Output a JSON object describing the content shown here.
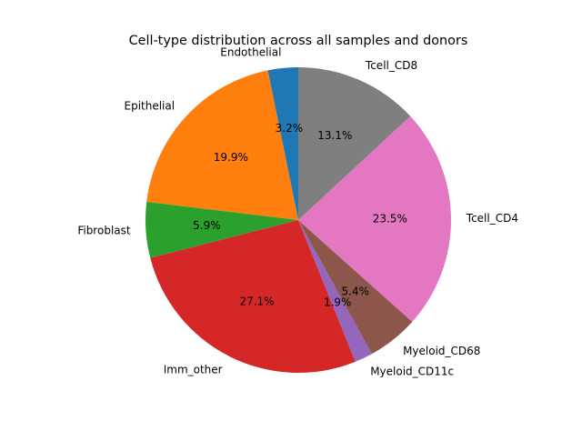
{
  "chart_data": {
    "type": "pie",
    "title": "Cell-type distribution across all samples and donors",
    "slices": [
      {
        "label": "Endothelial",
        "value": 3.2,
        "pct_text": "3.2%",
        "color": "#1f77b4"
      },
      {
        "label": "Epithelial",
        "value": 19.9,
        "pct_text": "19.9%",
        "color": "#ff7f0e"
      },
      {
        "label": "Fibroblast",
        "value": 5.9,
        "pct_text": "5.9%",
        "color": "#2ca02c"
      },
      {
        "label": "Imm_other",
        "value": 27.1,
        "pct_text": "27.1%",
        "color": "#d62728"
      },
      {
        "label": "Myeloid_CD11c",
        "value": 1.9,
        "pct_text": "1.9%",
        "color": "#9467bd"
      },
      {
        "label": "Myeloid_CD68",
        "value": 5.4,
        "pct_text": "5.4%",
        "color": "#8c564b"
      },
      {
        "label": "Tcell_CD4",
        "value": 23.5,
        "pct_text": "23.5%",
        "color": "#e377c2"
      },
      {
        "label": "Tcell_CD8",
        "value": 13.1,
        "pct_text": "13.1%",
        "color": "#7f7f7f"
      }
    ],
    "start_angle_deg": 90,
    "direction": "counterclockwise"
  }
}
